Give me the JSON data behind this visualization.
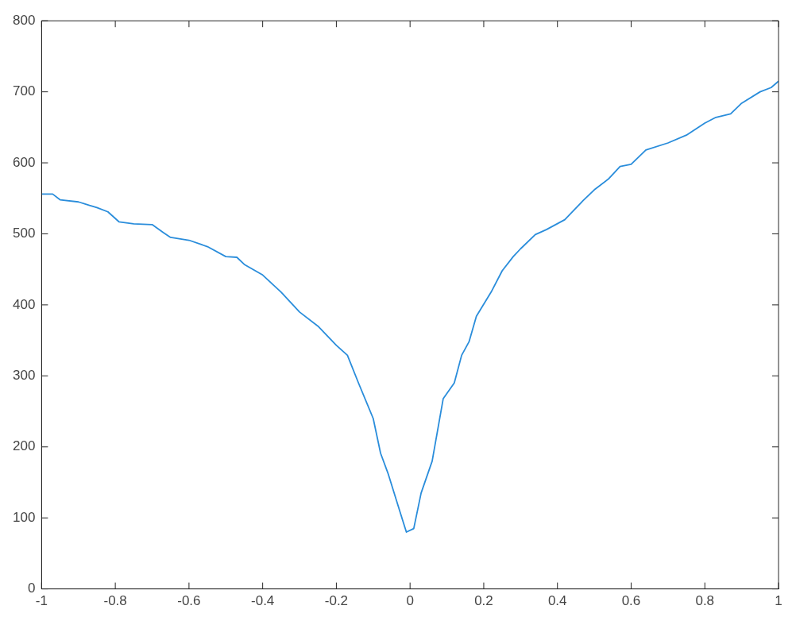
{
  "chart_data": {
    "type": "line",
    "color": "#2a8ddb",
    "grid": false,
    "marker": "none",
    "line_style": "solid",
    "x": [
      -1,
      -0.97,
      -0.95,
      -0.9,
      -0.87,
      -0.85,
      -0.82,
      -0.79,
      -0.75,
      -0.7,
      -0.67,
      -0.65,
      -0.6,
      -0.55,
      -0.5,
      -0.47,
      -0.45,
      -0.4,
      -0.35,
      -0.3,
      -0.25,
      -0.2,
      -0.17,
      -0.14,
      -0.1,
      -0.08,
      -0.06,
      -0.03,
      -0.01,
      0.01,
      0.03,
      0.06,
      0.09,
      0.12,
      0.14,
      0.16,
      0.18,
      0.22,
      0.25,
      0.28,
      0.3,
      0.34,
      0.37,
      0.42,
      0.47,
      0.5,
      0.54,
      0.57,
      0.6,
      0.64,
      0.7,
      0.75,
      0.8,
      0.83,
      0.87,
      0.9,
      0.95,
      0.98,
      1
    ],
    "values": [
      556,
      556,
      548,
      545,
      540,
      537,
      531,
      517,
      514,
      513,
      502,
      495,
      491,
      482,
      468,
      467,
      457,
      442,
      418,
      390,
      370,
      343,
      329,
      290,
      240,
      191,
      163,
      113,
      80,
      85,
      135,
      180,
      268,
      290,
      329,
      348,
      384,
      418,
      448,
      468,
      479,
      499,
      506,
      520,
      547,
      562,
      578,
      595,
      598,
      618,
      628,
      639,
      656,
      664,
      669,
      684,
      700,
      706,
      715
    ],
    "xlim": [
      -1,
      1
    ],
    "xticks": [
      -1,
      -0.8,
      -0.6,
      -0.4,
      -0.2,
      0,
      0.2,
      0.4,
      0.6,
      0.8,
      1
    ],
    "ylim": [
      0,
      800
    ],
    "yticks": [
      0,
      100,
      200,
      300,
      400,
      500,
      600,
      700,
      800
    ]
  }
}
